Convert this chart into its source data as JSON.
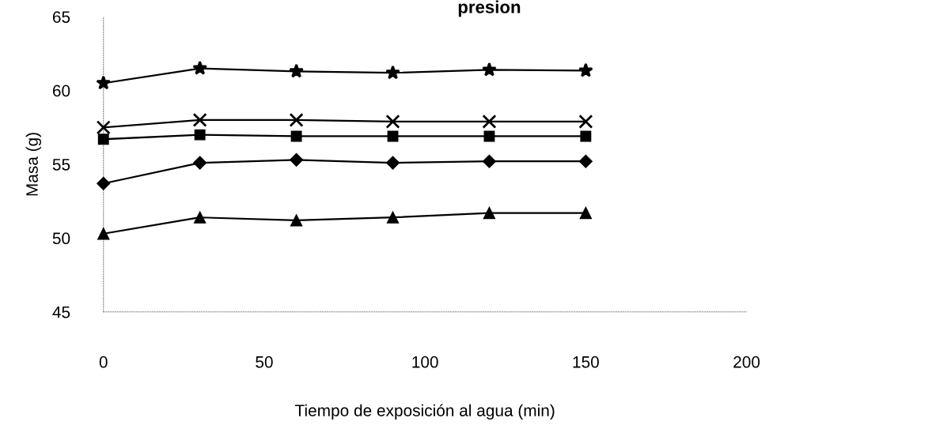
{
  "chart_data": {
    "type": "line",
    "title": "presion",
    "xlabel": "Tiempo de exposición al agua (min)",
    "ylabel": "Masa (g)",
    "x": [
      0,
      30,
      60,
      90,
      120,
      150
    ],
    "series": [
      {
        "color": "#000000",
        "marker": "diamond",
        "values": [
          53.7,
          55.1,
          55.3,
          55.1,
          55.2,
          55.2
        ]
      },
      {
        "color": "#000000",
        "marker": "square",
        "values": [
          56.7,
          57.0,
          56.9,
          56.9,
          56.9,
          56.9
        ]
      },
      {
        "color": "#000000",
        "marker": "triangle",
        "values": [
          50.3,
          51.4,
          51.2,
          51.4,
          51.7,
          51.7
        ]
      },
      {
        "color": "#000000",
        "marker": "cross",
        "values": [
          57.5,
          58.0,
          58.0,
          57.9,
          57.9,
          57.9
        ]
      },
      {
        "color": "#000000",
        "marker": "star",
        "values": [
          60.5,
          61.5,
          61.3,
          61.2,
          61.4,
          61.35
        ]
      }
    ],
    "xlim": [
      0,
      200
    ],
    "xticks": [
      0,
      50,
      100,
      150,
      200
    ],
    "ylim": [
      45,
      65
    ],
    "yticks": [
      45,
      50,
      55,
      60,
      65
    ],
    "grid": false,
    "legend": false,
    "line_style": "solid"
  }
}
